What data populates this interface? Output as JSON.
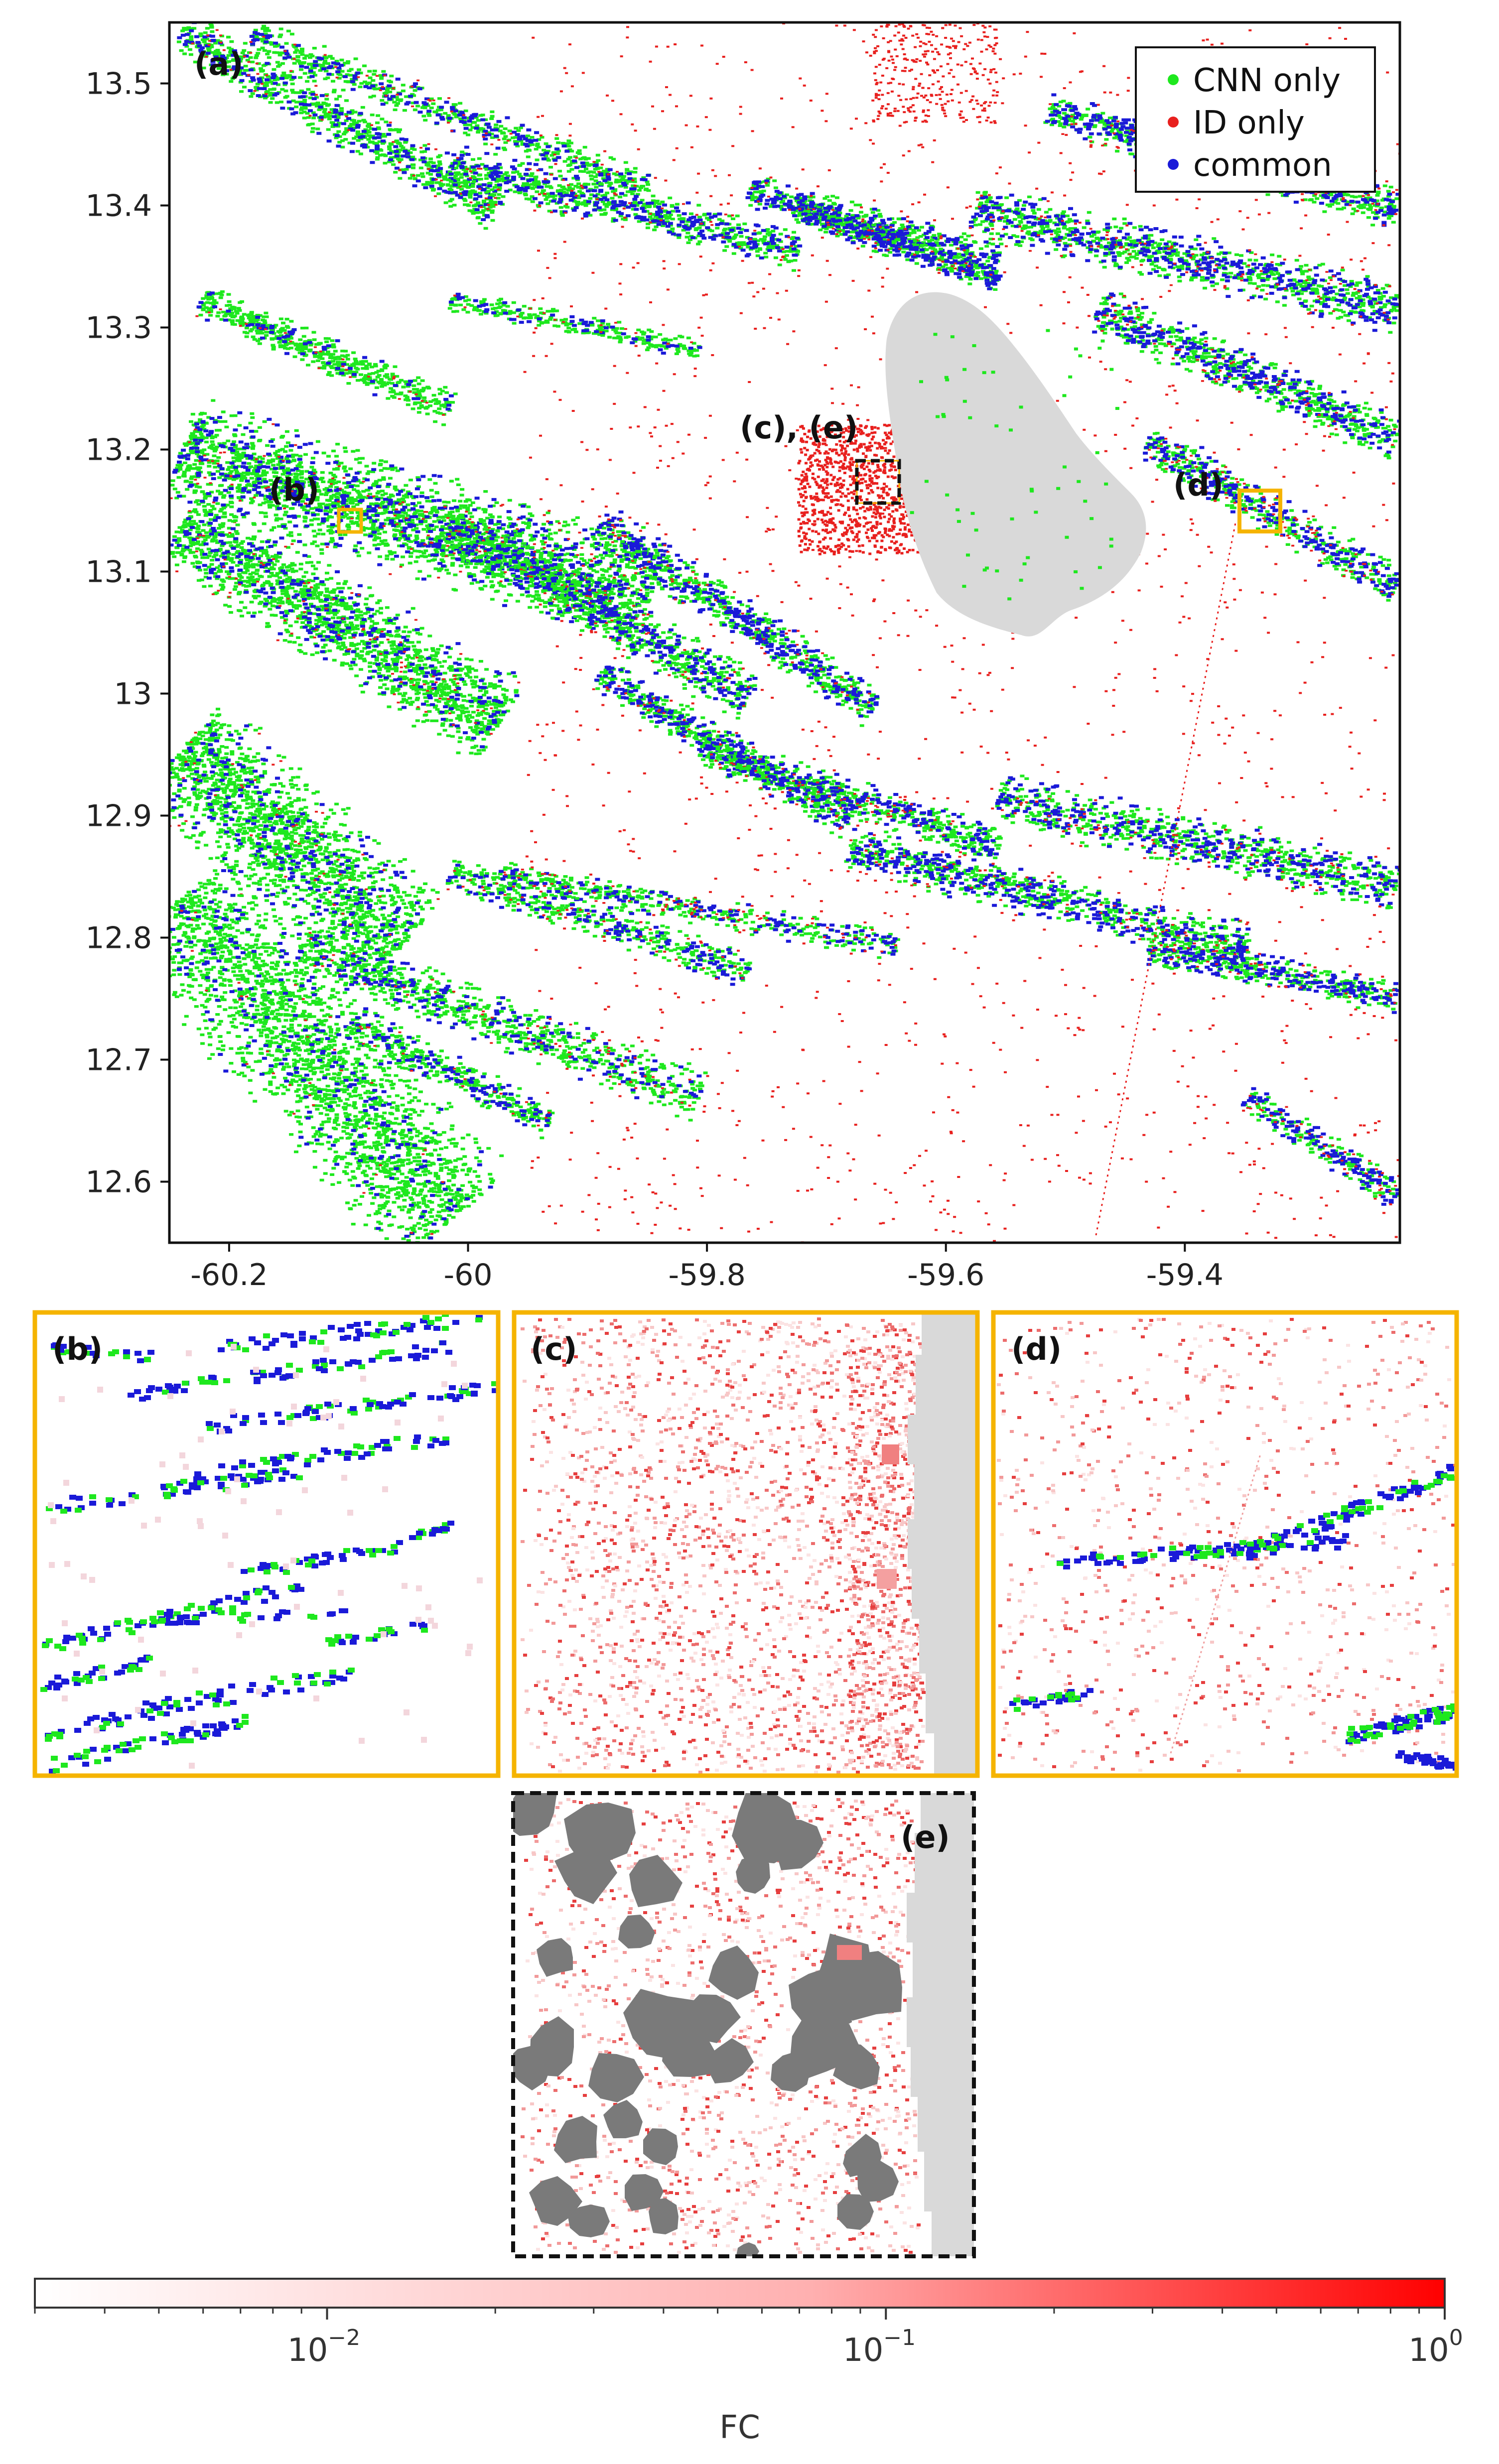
{
  "figure": {
    "panel_a": {
      "label": "(a)",
      "x_ticks": [
        -60.2,
        -60,
        -59.8,
        -59.6,
        -59.4
      ],
      "x_tick_labels": [
        "-60.2",
        "-60",
        "-59.8",
        "-59.6",
        "-59.4"
      ],
      "y_ticks": [
        13.5,
        13.4,
        13.3,
        13.2,
        13.1,
        13.0,
        12.9,
        12.8,
        12.7,
        12.6
      ],
      "y_tick_labels": [
        "13.5",
        "13.4",
        "13.3",
        "13.2",
        "13.1",
        "13",
        "12.9",
        "12.8",
        "12.7",
        "12.6"
      ],
      "xlim": [
        -60.25,
        -59.22
      ],
      "ylim": [
        12.55,
        13.55
      ],
      "legend": {
        "placement": "top-right",
        "items": [
          {
            "label": "CNN only",
            "color": "#1ee81e"
          },
          {
            "label": "ID only",
            "color": "#e8201e"
          },
          {
            "label": "common",
            "color": "#1a1ad8"
          }
        ]
      },
      "annotations": [
        {
          "text": "(b)",
          "box_color": "#f5b400"
        },
        {
          "text": "(c), (e)",
          "box_color": "#111111"
        },
        {
          "text": "(d)",
          "box_color": "#f5b400"
        }
      ]
    },
    "panel_b": {
      "label": "(b)",
      "border_color": "#f5b400"
    },
    "panel_c": {
      "label": "(c)",
      "border_color": "#f5b400"
    },
    "panel_d": {
      "label": "(d)",
      "border_color": "#f5b400"
    },
    "panel_e": {
      "label": "(e)",
      "border_color": "#111111"
    },
    "colorbar": {
      "label": "FC",
      "scale": "log",
      "range": [
        0.003,
        1
      ],
      "colors": [
        "#ffffff",
        "#ff0000"
      ],
      "tick_labels": [
        {
          "base": "10",
          "exp": "−2",
          "value": 0.01
        },
        {
          "base": "10",
          "exp": "−1",
          "value": 0.1
        },
        {
          "base": "10",
          "exp": "0",
          "value": 1
        }
      ]
    },
    "colors": {
      "cnn_only": "#1ee81e",
      "id_only": "#e8201e",
      "common": "#1a1ad8",
      "island": "#d9d9d9",
      "cloud_mask": "#7a7a7a",
      "highlight_box": "#f5b400"
    }
  }
}
